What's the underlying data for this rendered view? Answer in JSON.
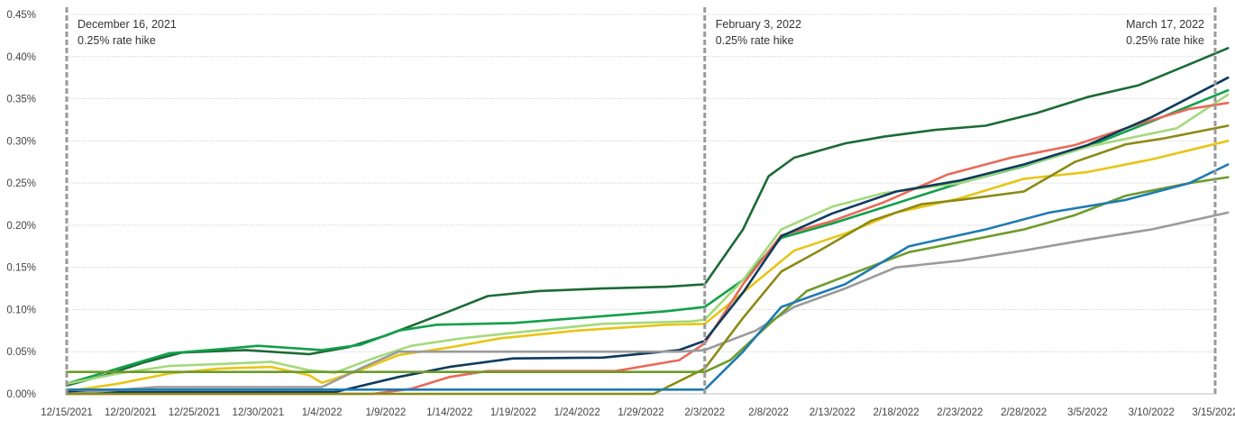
{
  "chart_data": {
    "type": "line",
    "title": "",
    "xlabel": "",
    "ylabel": "",
    "x_start": "12/15/2021",
    "x_end": "3/15/2022",
    "x_ticks": [
      "12/15/2021",
      "12/20/2021",
      "12/25/2021",
      "12/30/2021",
      "1/4/2022",
      "1/9/2022",
      "1/14/2022",
      "1/19/2022",
      "1/24/2022",
      "1/29/2022",
      "2/3/2022",
      "2/8/2022",
      "2/13/2022",
      "2/18/2022",
      "2/23/2022",
      "2/28/2022",
      "3/5/2022",
      "3/10/2022",
      "3/15/2022"
    ],
    "ylim": [
      0,
      0.45
    ],
    "y_ticks": [
      0,
      0.05,
      0.1,
      0.15,
      0.2,
      0.25,
      0.3,
      0.35,
      0.4,
      0.45
    ],
    "y_tick_labels": [
      "0.00%",
      "0.05%",
      "0.10%",
      "0.15%",
      "0.20%",
      "0.25%",
      "0.30%",
      "0.35%",
      "0.40%",
      "0.45%"
    ],
    "grid": true,
    "legend": "none",
    "annotations": [
      {
        "date": "12/15/2021",
        "line1": "December 16, 2021",
        "line2": "0.25% rate hike"
      },
      {
        "date": "2/3/2022",
        "line1": "February 3, 2022",
        "line2": "0.25% rate hike"
      },
      {
        "date": "3/15/2022",
        "line1": "March 17, 2022",
        "line2": "0.25% rate hike"
      }
    ],
    "series": [
      {
        "color": "#1b6b35",
        "points": [
          [
            "12/15/2021",
            0.01
          ],
          [
            "12/18/2021",
            0.022
          ],
          [
            "12/21/2021",
            0.037
          ],
          [
            "12/24/2021",
            0.049
          ],
          [
            "12/29/2021",
            0.052
          ],
          [
            "1/3/2022",
            0.047
          ],
          [
            "1/6/2022",
            0.055
          ],
          [
            "1/9/2022",
            0.069
          ],
          [
            "1/14/2022",
            0.098
          ],
          [
            "1/17/2022",
            0.116
          ],
          [
            "1/21/2022",
            0.122
          ],
          [
            "1/26/2022",
            0.125
          ],
          [
            "1/31/2022",
            0.127
          ],
          [
            "2/3/2022",
            0.13
          ],
          [
            "2/6/2022",
            0.195
          ],
          [
            "2/8/2022",
            0.258
          ],
          [
            "2/10/2022",
            0.28
          ],
          [
            "2/14/2022",
            0.297
          ],
          [
            "2/17/2022",
            0.305
          ],
          [
            "2/21/2022",
            0.313
          ],
          [
            "2/25/2022",
            0.318
          ],
          [
            "3/1/2022",
            0.333
          ],
          [
            "3/5/2022",
            0.352
          ],
          [
            "3/9/2022",
            0.366
          ],
          [
            "3/13/2022",
            0.391
          ],
          [
            "3/16/2022",
            0.41
          ]
        ]
      },
      {
        "color": "#12a04a",
        "points": [
          [
            "12/15/2021",
            0.012
          ],
          [
            "12/19/2021",
            0.03
          ],
          [
            "12/23/2021",
            0.048
          ],
          [
            "12/27/2021",
            0.053
          ],
          [
            "12/30/2021",
            0.057
          ],
          [
            "1/4/2022",
            0.052
          ],
          [
            "1/7/2022",
            0.058
          ],
          [
            "1/10/2022",
            0.075
          ],
          [
            "1/13/2022",
            0.082
          ],
          [
            "1/19/2022",
            0.084
          ],
          [
            "1/25/2022",
            0.091
          ],
          [
            "1/31/2022",
            0.098
          ],
          [
            "2/3/2022",
            0.103
          ],
          [
            "2/6/2022",
            0.135
          ],
          [
            "2/9/2022",
            0.185
          ],
          [
            "2/13/2022",
            0.202
          ],
          [
            "2/18/2022",
            0.226
          ],
          [
            "2/23/2022",
            0.25
          ],
          [
            "2/28/2022",
            0.27
          ],
          [
            "3/5/2022",
            0.293
          ],
          [
            "3/10/2022",
            0.323
          ],
          [
            "3/16/2022",
            0.36
          ]
        ]
      },
      {
        "color": "#a3d97b",
        "points": [
          [
            "12/15/2021",
            0.012
          ],
          [
            "12/19/2021",
            0.024
          ],
          [
            "12/23/2021",
            0.033
          ],
          [
            "12/28/2021",
            0.036
          ],
          [
            "12/31/2021",
            0.038
          ],
          [
            "1/3/2022",
            0.028
          ],
          [
            "1/5/2022",
            0.025
          ],
          [
            "1/8/2022",
            0.042
          ],
          [
            "1/11/2022",
            0.057
          ],
          [
            "1/15/2022",
            0.066
          ],
          [
            "1/20/2022",
            0.074
          ],
          [
            "1/26/2022",
            0.083
          ],
          [
            "2/2/2022",
            0.086
          ],
          [
            "2/3/2022",
            0.088
          ],
          [
            "2/6/2022",
            0.135
          ],
          [
            "2/9/2022",
            0.195
          ],
          [
            "2/13/2022",
            0.222
          ],
          [
            "2/17/2022",
            0.238
          ],
          [
            "2/23/2022",
            0.25
          ],
          [
            "3/1/2022",
            0.275
          ],
          [
            "3/5/2022",
            0.293
          ],
          [
            "3/12/2022",
            0.315
          ],
          [
            "3/16/2022",
            0.355
          ]
        ]
      },
      {
        "color": "#e8c515",
        "points": [
          [
            "12/15/2021",
            0.003
          ],
          [
            "12/19/2021",
            0.012
          ],
          [
            "12/23/2021",
            0.024
          ],
          [
            "12/27/2021",
            0.03
          ],
          [
            "12/31/2021",
            0.032
          ],
          [
            "1/3/2022",
            0.022
          ],
          [
            "1/4/2022",
            0.013
          ],
          [
            "1/7/2022",
            0.028
          ],
          [
            "1/10/2022",
            0.046
          ],
          [
            "1/14/2022",
            0.055
          ],
          [
            "1/18/2022",
            0.066
          ],
          [
            "1/24/2022",
            0.075
          ],
          [
            "1/31/2022",
            0.082
          ],
          [
            "2/3/2022",
            0.083
          ],
          [
            "2/6/2022",
            0.12
          ],
          [
            "2/10/2022",
            0.17
          ],
          [
            "2/14/2022",
            0.19
          ],
          [
            "2/18/2022",
            0.215
          ],
          [
            "2/23/2022",
            0.232
          ],
          [
            "2/28/2022",
            0.255
          ],
          [
            "3/5/2022",
            0.263
          ],
          [
            "3/10/2022",
            0.278
          ],
          [
            "3/16/2022",
            0.3
          ]
        ]
      },
      {
        "color": "#e86a5a",
        "points": [
          [
            "12/15/2021",
            0.0
          ],
          [
            "1/8/2022",
            0.0
          ],
          [
            "1/11/2022",
            0.006
          ],
          [
            "1/14/2022",
            0.02
          ],
          [
            "1/17/2022",
            0.027
          ],
          [
            "1/27/2022",
            0.027
          ],
          [
            "2/1/2022",
            0.04
          ],
          [
            "2/3/2022",
            0.06
          ],
          [
            "2/6/2022",
            0.13
          ],
          [
            "2/9/2022",
            0.188
          ],
          [
            "2/13/2022",
            0.205
          ],
          [
            "2/17/2022",
            0.227
          ],
          [
            "2/22/2022",
            0.26
          ],
          [
            "2/27/2022",
            0.28
          ],
          [
            "3/4/2022",
            0.295
          ],
          [
            "3/9/2022",
            0.32
          ],
          [
            "3/13/2022",
            0.338
          ],
          [
            "3/16/2022",
            0.345
          ]
        ]
      },
      {
        "color": "#0d3b5c",
        "points": [
          [
            "12/15/2021",
            0.002
          ],
          [
            "1/5/2022",
            0.002
          ],
          [
            "1/10/2022",
            0.02
          ],
          [
            "1/14/2022",
            0.032
          ],
          [
            "1/19/2022",
            0.042
          ],
          [
            "1/26/2022",
            0.043
          ],
          [
            "2/1/2022",
            0.052
          ],
          [
            "2/3/2022",
            0.063
          ],
          [
            "2/6/2022",
            0.12
          ],
          [
            "2/9/2022",
            0.187
          ],
          [
            "2/13/2022",
            0.214
          ],
          [
            "2/18/2022",
            0.24
          ],
          [
            "2/23/2022",
            0.253
          ],
          [
            "2/28/2022",
            0.272
          ],
          [
            "3/5/2022",
            0.295
          ],
          [
            "3/10/2022",
            0.328
          ],
          [
            "3/16/2022",
            0.375
          ]
        ]
      },
      {
        "color": "#9a9a9a",
        "points": [
          [
            "12/15/2021",
            0.0
          ],
          [
            "12/22/2021",
            0.008
          ],
          [
            "1/4/2022",
            0.008
          ],
          [
            "1/7/2022",
            0.03
          ],
          [
            "1/10/2022",
            0.05
          ],
          [
            "2/1/2022",
            0.05
          ],
          [
            "2/3/2022",
            0.052
          ],
          [
            "2/7/2022",
            0.075
          ],
          [
            "2/10/2022",
            0.103
          ],
          [
            "2/14/2022",
            0.125
          ],
          [
            "2/18/2022",
            0.15
          ],
          [
            "2/23/2022",
            0.158
          ],
          [
            "2/28/2022",
            0.17
          ],
          [
            "3/5/2022",
            0.183
          ],
          [
            "3/10/2022",
            0.195
          ],
          [
            "3/16/2022",
            0.215
          ]
        ]
      },
      {
        "color": "#8b8a14",
        "points": [
          [
            "12/15/2021",
            0.0
          ],
          [
            "1/30/2022",
            0.0
          ],
          [
            "2/3/2022",
            0.03
          ],
          [
            "2/6/2022",
            0.09
          ],
          [
            "2/9/2022",
            0.145
          ],
          [
            "2/12/2022",
            0.17
          ],
          [
            "2/16/2022",
            0.205
          ],
          [
            "2/20/2022",
            0.225
          ],
          [
            "2/23/2022",
            0.23
          ],
          [
            "2/28/2022",
            0.24
          ],
          [
            "3/4/2022",
            0.275
          ],
          [
            "3/8/2022",
            0.296
          ],
          [
            "3/11/2022",
            0.303
          ],
          [
            "3/16/2022",
            0.318
          ]
        ]
      },
      {
        "color": "#6e9b2a",
        "points": [
          [
            "12/15/2021",
            0.026
          ],
          [
            "2/3/2022",
            0.026
          ],
          [
            "2/5/2022",
            0.04
          ],
          [
            "2/8/2022",
            0.082
          ],
          [
            "2/11/2022",
            0.122
          ],
          [
            "2/15/2022",
            0.145
          ],
          [
            "2/19/2022",
            0.168
          ],
          [
            "2/23/2022",
            0.18
          ],
          [
            "2/28/2022",
            0.195
          ],
          [
            "3/4/2022",
            0.212
          ],
          [
            "3/8/2022",
            0.235
          ],
          [
            "3/13/2022",
            0.25
          ],
          [
            "3/16/2022",
            0.257
          ]
        ]
      },
      {
        "color": "#1f7bb0",
        "points": [
          [
            "12/15/2021",
            0.005
          ],
          [
            "2/3/2022",
            0.005
          ],
          [
            "2/6/2022",
            0.05
          ],
          [
            "2/9/2022",
            0.103
          ],
          [
            "2/14/2022",
            0.13
          ],
          [
            "2/19/2022",
            0.175
          ],
          [
            "2/25/2022",
            0.195
          ],
          [
            "3/2/2022",
            0.215
          ],
          [
            "3/8/2022",
            0.23
          ],
          [
            "3/13/2022",
            0.25
          ],
          [
            "3/16/2022",
            0.272
          ]
        ]
      }
    ]
  }
}
